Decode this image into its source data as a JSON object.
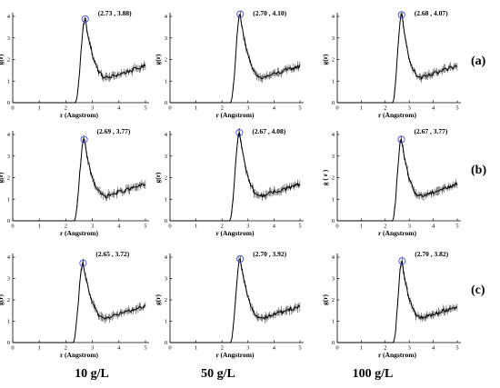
{
  "chart_data": {
    "type": "line",
    "xlabel": "r (Angstrom)",
    "ylabel": "g(r)",
    "xlim": [
      0,
      5
    ],
    "ylim": [
      0,
      4
    ],
    "xticks": [
      0,
      1,
      2,
      3,
      4,
      5
    ],
    "yticks": [
      0,
      1,
      2,
      3,
      4
    ],
    "row_labels": [
      "(a)",
      "(b)",
      "(c)"
    ],
    "column_labels": [
      "10 g/L",
      "50 g/L",
      "100 g/L"
    ],
    "panels": [
      {
        "row": "(a)",
        "column": "10 g/L",
        "peak_x": 2.73,
        "peak_y": 3.88,
        "peak_label": "(2.73 , 3.88)",
        "ylabel": "g(r)"
      },
      {
        "row": "(a)",
        "column": "50 g/L",
        "peak_x": 2.7,
        "peak_y": 4.1,
        "peak_label": "(2.70 , 4.10)",
        "ylabel": "g(r)"
      },
      {
        "row": "(a)",
        "column": "100 g/L",
        "peak_x": 2.68,
        "peak_y": 4.07,
        "peak_label": "(2.68 , 4.07)",
        "ylabel": "g(r)"
      },
      {
        "row": "(b)",
        "column": "10 g/L",
        "peak_x": 2.69,
        "peak_y": 3.77,
        "peak_label": "(2.69 , 3.77)",
        "ylabel": "g(r)"
      },
      {
        "row": "(b)",
        "column": "50 g/L",
        "peak_x": 2.67,
        "peak_y": 4.08,
        "peak_label": "(2.67 , 4.08)",
        "ylabel": "g(r)"
      },
      {
        "row": "(b)",
        "column": "100 g/L",
        "peak_x": 2.67,
        "peak_y": 3.77,
        "peak_label": "(2.67 , 3.77)",
        "ylabel": "g ( r )"
      },
      {
        "row": "(c)",
        "column": "10 g/L",
        "peak_x": 2.65,
        "peak_y": 3.72,
        "peak_label": "(2.65 , 3.72)",
        "ylabel": "g(r)"
      },
      {
        "row": "(c)",
        "column": "50 g/L",
        "peak_x": 2.7,
        "peak_y": 3.92,
        "peak_label": "(2.70 , 3.92)",
        "ylabel": "g(r)"
      },
      {
        "row": "(c)",
        "column": "100 g/L",
        "peak_x": 2.7,
        "peak_y": 3.82,
        "peak_label": "(2.70 , 3.82)",
        "ylabel": "g(r)"
      }
    ],
    "grid": false,
    "curve_color": "#000000",
    "peak_marker_color": "#2a3bd6"
  }
}
